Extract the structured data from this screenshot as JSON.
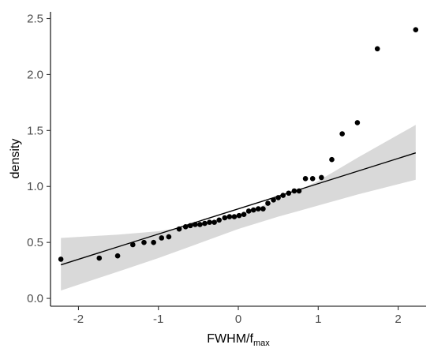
{
  "chart_data": {
    "type": "scatter",
    "xlabel": "FWHM/f",
    "xlabel_subscript": "max",
    "ylabel": "density",
    "xlim": [
      -2.35,
      2.35
    ],
    "ylim": [
      -0.07,
      2.56
    ],
    "x_ticks": [
      -2,
      -1,
      0,
      1,
      2
    ],
    "x_tick_labels": [
      "-2",
      "-1",
      "0",
      "1",
      "2"
    ],
    "y_ticks": [
      0,
      0.5,
      1,
      1.5,
      2,
      2.5
    ],
    "y_tick_labels": [
      "0.0",
      "0.5",
      "1.0",
      "1.5",
      "2.0",
      "2.5"
    ],
    "grid": false,
    "legend": "none",
    "points": {
      "x": [
        -2.22,
        -1.74,
        -1.51,
        -1.32,
        -1.18,
        -1.06,
        -0.96,
        -0.87,
        -0.74,
        -0.66,
        -0.6,
        -0.54,
        -0.48,
        -0.42,
        -0.36,
        -0.3,
        -0.24,
        -0.17,
        -0.11,
        -0.05,
        0.01,
        0.07,
        0.13,
        0.19,
        0.25,
        0.31,
        0.37,
        0.44,
        0.5,
        0.56,
        0.63,
        0.7,
        0.76,
        0.84,
        0.93,
        1.04,
        1.17,
        1.3,
        1.49,
        1.74,
        2.22
      ],
      "y": [
        0.35,
        0.36,
        0.38,
        0.48,
        0.5,
        0.5,
        0.54,
        0.55,
        0.62,
        0.64,
        0.65,
        0.66,
        0.66,
        0.67,
        0.68,
        0.68,
        0.7,
        0.72,
        0.73,
        0.73,
        0.74,
        0.75,
        0.78,
        0.79,
        0.8,
        0.8,
        0.85,
        0.88,
        0.9,
        0.92,
        0.94,
        0.96,
        0.96,
        1.07,
        1.07,
        1.08,
        1.24,
        1.47,
        1.57,
        2.23,
        2.4
      ]
    },
    "fit_line": {
      "x": [
        -2.22,
        2.22
      ],
      "y": [
        0.3,
        1.3
      ]
    },
    "confidence_band": {
      "x": [
        -2.22,
        -1.5,
        -1.0,
        -0.5,
        0,
        0.5,
        1.0,
        1.5,
        2.22
      ],
      "lower": [
        0.07,
        0.24,
        0.36,
        0.49,
        0.62,
        0.73,
        0.83,
        0.93,
        1.06
      ],
      "upper": [
        0.54,
        0.57,
        0.6,
        0.66,
        0.75,
        0.88,
        1.05,
        1.26,
        1.55
      ]
    },
    "colors": {
      "points": "#000000",
      "line": "#000000",
      "band": "#d9d9d9"
    }
  }
}
